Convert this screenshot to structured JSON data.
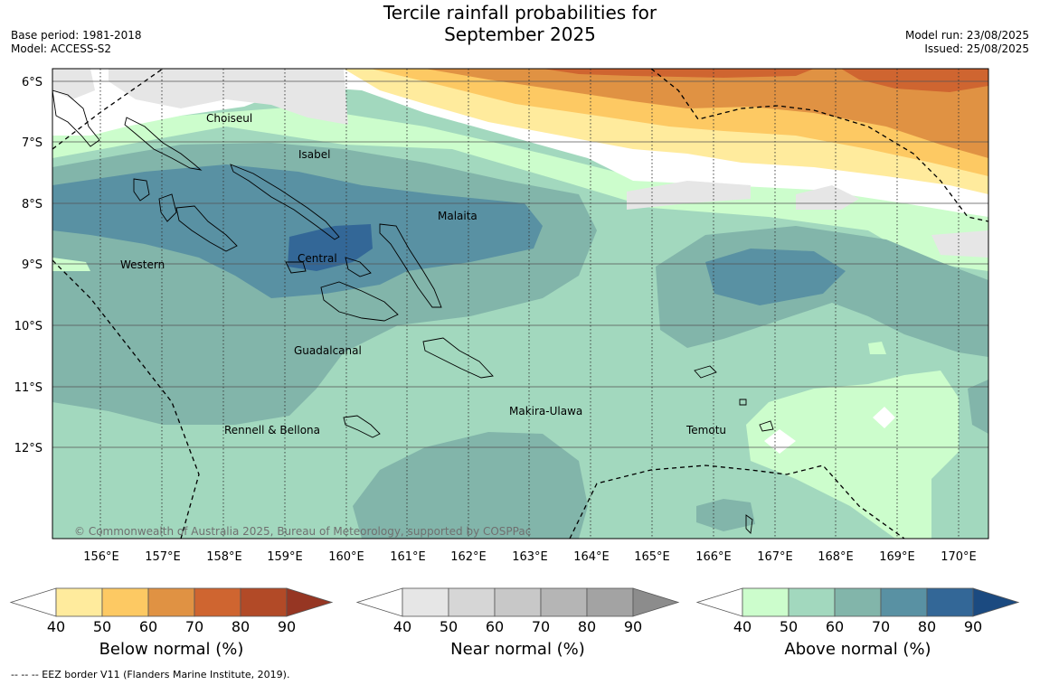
{
  "title": {
    "line1": "Tercile rainfall probabilities for",
    "line2": "September 2025"
  },
  "meta": {
    "base_period": "Base period: 1981-2018",
    "model": "Model: ACCESS-S2",
    "model_run": "Model run: 23/08/2025",
    "issued": "Issued: 25/08/2025"
  },
  "map": {
    "lat_labels": [
      "6°S",
      "7°S",
      "8°S",
      "9°S",
      "10°S",
      "11°S",
      "12°S"
    ],
    "lon_labels": [
      "156°E",
      "157°E",
      "158°E",
      "159°E",
      "160°E",
      "161°E",
      "162°E",
      "163°E",
      "164°E",
      "165°E",
      "166°E",
      "167°E",
      "168°E",
      "169°E",
      "170°E"
    ],
    "regions": [
      "Choiseul",
      "Isabel",
      "Malaita",
      "Central",
      "Western",
      "Guadalcanal",
      "Makira-Ulawa",
      "Rennell & Bellona",
      "Temotu"
    ],
    "copyright": "© Commonwealth of Australia 2025, Bureau of Meteorology, supported by COSPPac"
  },
  "colorbars": [
    {
      "title": "Below normal (%)",
      "ticks": [
        "40",
        "50",
        "60",
        "70",
        "80",
        "90"
      ],
      "colors": [
        "#ffffff",
        "#ffeb9d",
        "#fdc963",
        "#e09243",
        "#cf6530",
        "#b24a27",
        "#963623"
      ]
    },
    {
      "title": "Near normal (%)",
      "ticks": [
        "40",
        "50",
        "60",
        "70",
        "80",
        "90"
      ],
      "colors": [
        "#ffffff",
        "#e6e6e6",
        "#d6d6d6",
        "#c8c8c8",
        "#b5b5b5",
        "#a3a3a3",
        "#8c8c8c"
      ]
    },
    {
      "title": "Above normal (%)",
      "ticks": [
        "40",
        "50",
        "60",
        "70",
        "80",
        "90"
      ],
      "colors": [
        "#ffffff",
        "#ccfdcc",
        "#a2d8be",
        "#82b5aa",
        "#5991a3",
        "#336797",
        "#1b4a80"
      ]
    }
  ],
  "footnote": "--  --  -- EEZ border V11 (Flanders Marine Institute, 2019)."
}
